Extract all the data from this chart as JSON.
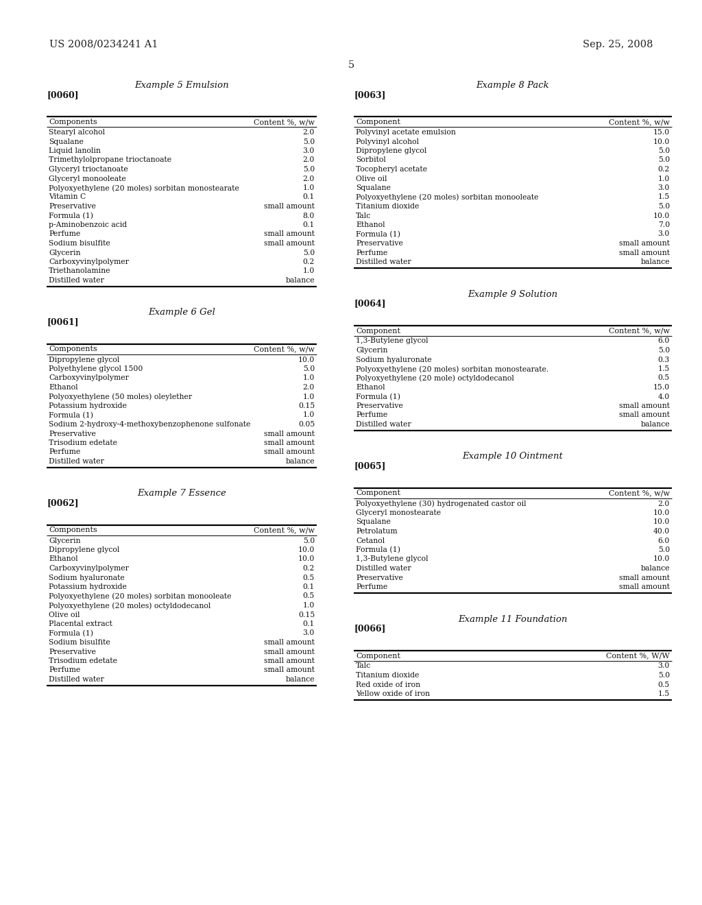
{
  "bg_color": "#ffffff",
  "header_left": "US 2008/0234241 A1",
  "header_right": "Sep. 25, 2008",
  "page_number": "5",
  "example5_title": "Example 5 Emulsion",
  "example5_tag": "[0060]",
  "example5_col1": "Components",
  "example5_col2": "Content %, w/w",
  "example5_rows": [
    [
      "Stearyl alcohol",
      "2.0"
    ],
    [
      "Squalane",
      "5.0"
    ],
    [
      "Liquid lanolin",
      "3.0"
    ],
    [
      "Trimethylolpropane trioctanoate",
      "2.0"
    ],
    [
      "Glyceryl trioctanoate",
      "5.0"
    ],
    [
      "Glyceryl monooleate",
      "2.0"
    ],
    [
      "Polyoxyethylene (20 moles) sorbitan monostearate",
      "1.0"
    ],
    [
      "Vitamin C",
      "0.1"
    ],
    [
      "Preservative",
      "small amount"
    ],
    [
      "Formula (1)",
      "8.0"
    ],
    [
      "p-Aminobenzoic acid",
      "0.1"
    ],
    [
      "Perfume",
      "small amount"
    ],
    [
      "Sodium bisulfite",
      "small amount"
    ],
    [
      "Glycerin",
      "5.0"
    ],
    [
      "Carboxyvinylpolymer",
      "0.2"
    ],
    [
      "Triethanolamine",
      "1.0"
    ],
    [
      "Distilled water",
      "balance"
    ]
  ],
  "example6_title": "Example 6 Gel",
  "example6_tag": "[0061]",
  "example6_col1": "Components",
  "example6_col2": "Content %, w/w",
  "example6_rows": [
    [
      "Dipropylene glycol",
      "10.0"
    ],
    [
      "Polyethylene glycol 1500",
      "5.0"
    ],
    [
      "Carboxyvinylpolymer",
      "1.0"
    ],
    [
      "Ethanol",
      "2.0"
    ],
    [
      "Polyoxyethylene (50 moles) oleylether",
      "1.0"
    ],
    [
      "Potassium hydroxide",
      "0.15"
    ],
    [
      "Formula (1)",
      "1.0"
    ],
    [
      "Sodium 2-hydroxy-4-methoxybenzophenone sulfonate",
      "0.05"
    ],
    [
      "Preservative",
      "small amount"
    ],
    [
      "Trisodium edetate",
      "small amount"
    ],
    [
      "Perfume",
      "small amount"
    ],
    [
      "Distilled water",
      "balance"
    ]
  ],
  "example7_title": "Example 7 Essence",
  "example7_tag": "[0062]",
  "example7_col1": "Components",
  "example7_col2": "Content %, w/w",
  "example7_rows": [
    [
      "Glycerin",
      "5.0"
    ],
    [
      "Dipropylene glycol",
      "10.0"
    ],
    [
      "Ethanol",
      "10.0"
    ],
    [
      "Carboxyvinylpolymer",
      "0.2"
    ],
    [
      "Sodium hyaluronate",
      "0.5"
    ],
    [
      "Potassium hydroxide",
      "0.1"
    ],
    [
      "Polyoxyethylene (20 moles) sorbitan monooleate",
      "0.5"
    ],
    [
      "Polyoxyethylene (20 moles) octyldodecanol",
      "1.0"
    ],
    [
      "Olive oil",
      "0.15"
    ],
    [
      "Placental extract",
      "0.1"
    ],
    [
      "Formula (1)",
      "3.0"
    ],
    [
      "Sodium bisulfite",
      "small amount"
    ],
    [
      "Preservative",
      "small amount"
    ],
    [
      "Trisodium edetate",
      "small amount"
    ],
    [
      "Perfume",
      "small amount"
    ],
    [
      "Distilled water",
      "balance"
    ]
  ],
  "example8_title": "Example 8 Pack",
  "example8_tag": "[0063]",
  "example8_col1": "Component",
  "example8_col2": "Content %, w/w",
  "example8_rows": [
    [
      "Polyvinyl acetate emulsion",
      "15.0"
    ],
    [
      "Polyvinyl alcohol",
      "10.0"
    ],
    [
      "Dipropylene glycol",
      "5.0"
    ],
    [
      "Sorbitol",
      "5.0"
    ],
    [
      "Tocopheryl acetate",
      "0.2"
    ],
    [
      "Olive oil",
      "1.0"
    ],
    [
      "Squalane",
      "3.0"
    ],
    [
      "Polyoxyethylene (20 moles) sorbitan monooleate",
      "1.5"
    ],
    [
      "Titanium dioxide",
      "5.0"
    ],
    [
      "Talc",
      "10.0"
    ],
    [
      "Ethanol",
      "7.0"
    ],
    [
      "Formula (1)",
      "3.0"
    ],
    [
      "Preservative",
      "small amount"
    ],
    [
      "Perfume",
      "small amount"
    ],
    [
      "Distilled water",
      "balance"
    ]
  ],
  "example9_title": "Example 9 Solution",
  "example9_tag": "[0064]",
  "example9_col1": "Component",
  "example9_col2": "Content %, w/w",
  "example9_rows": [
    [
      "1,3-Butylene glycol",
      "6.0"
    ],
    [
      "Glycerin",
      "5.0"
    ],
    [
      "Sodium hyaluronate",
      "0.3"
    ],
    [
      "Polyoxyethylene (20 moles) sorbitan monostearate.",
      "1.5"
    ],
    [
      "Polyoxyethylene (20 mole) octyldodecanol",
      "0.5"
    ],
    [
      "Ethanol",
      "15.0"
    ],
    [
      "Formula (1)",
      "4.0"
    ],
    [
      "Preservative",
      "small amount"
    ],
    [
      "Perfume",
      "small amount"
    ],
    [
      "Distilled water",
      "balance"
    ]
  ],
  "example10_title": "Example 10 Ointment",
  "example10_tag": "[0065]",
  "example10_col1": "Component",
  "example10_col2": "Content %, w/w",
  "example10_rows": [
    [
      "Polyoxyethylene (30) hydrogenated castor oil",
      "2.0"
    ],
    [
      "Glyceryl monostearate",
      "10.0"
    ],
    [
      "Squalane",
      "10.0"
    ],
    [
      "Petrolatum",
      "40.0"
    ],
    [
      "Cetanol",
      "6.0"
    ],
    [
      "Formula (1)",
      "5.0"
    ],
    [
      "1,3-Butylene glycol",
      "10.0"
    ],
    [
      "Distilled water",
      "balance"
    ],
    [
      "Preservative",
      "small amount"
    ],
    [
      "Perfume",
      "small amount"
    ]
  ],
  "example11_title": "Example 11 Foundation",
  "example11_tag": "[0066]",
  "example11_col1": "Component",
  "example11_col2": "Content %, W/W",
  "example11_rows": [
    [
      "Talc",
      "3.0"
    ],
    [
      "Titanium dioxide",
      "5.0"
    ],
    [
      "Red oxide of iron",
      "0.5"
    ],
    [
      "Yellow oxide of iron",
      "1.5"
    ]
  ]
}
